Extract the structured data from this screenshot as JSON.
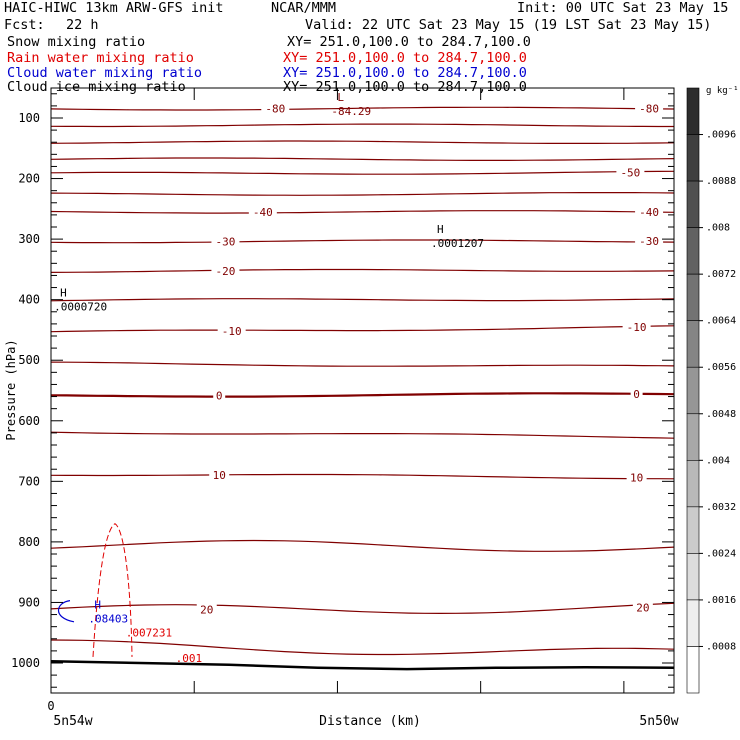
{
  "header": {
    "model_title": "HAIC-HIWC 13km ARW-GFS init",
    "org": "NCAR/MMM",
    "init": "Init: 00 UTC Sat 23 May 15",
    "fcst_label": "Fcst:",
    "fcst_value": "22 h",
    "valid": "Valid: 22 UTC Sat 23 May 15 (19 LST Sat 23 May 15)"
  },
  "fields": [
    {
      "name": "Snow mixing ratio",
      "xy": "XY= 251.0,100.0 to 284.7,100.0",
      "color": "#000000"
    },
    {
      "name": "Rain water mixing ratio",
      "xy": "XY= 251.0,100.0 to 284.7,100.0",
      "color": "#e00000"
    },
    {
      "name": "Cloud water mixing ratio",
      "xy": "XY= 251.0,100.0 to 284.7,100.0",
      "color": "#0000d0"
    },
    {
      "name": "Cloud ice mixing ratio",
      "xy": "XY= 251.0,100.0 to 284.7,100.0",
      "color": "#000000"
    }
  ],
  "chart_data": {
    "type": "contour-cross-section",
    "ylabel": "Pressure (hPa)",
    "xlabel": "Distance (km)",
    "x_start_label": "5n54w",
    "x_end_label": "5n50w",
    "x_origin_label": "0",
    "ylim": [
      1050,
      50
    ],
    "y_ticks": [
      100,
      200,
      300,
      400,
      500,
      600,
      700,
      800,
      900,
      1000
    ],
    "temperature_contour_color": "#800000",
    "temperature_contours": [
      {
        "label": "-80",
        "p_left": 85,
        "p_right": 84,
        "label_spots": [
          [
            0.36,
            -1
          ],
          [
            0.96,
            -1
          ]
        ]
      },
      {
        "label": "",
        "p_left": 112,
        "p_right": 112,
        "label_spots": []
      },
      {
        "label": "",
        "p_left": 140,
        "p_right": 140,
        "label_spots": []
      },
      {
        "label": "",
        "p_left": 168,
        "p_right": 168,
        "label_spots": []
      },
      {
        "label": "-50",
        "p_left": 192,
        "p_right": 190,
        "label_spots": [
          [
            0.93,
            -1
          ]
        ]
      },
      {
        "label": "",
        "p_left": 226,
        "p_right": 225,
        "label_spots": []
      },
      {
        "label": "-40",
        "p_left": 255,
        "p_right": 255,
        "label_spots": [
          [
            0.34,
            -1
          ],
          [
            0.96,
            -1
          ]
        ]
      },
      {
        "label": "-30",
        "p_left": 304,
        "p_right": 303,
        "label_spots": [
          [
            0.28,
            -1
          ],
          [
            0.96,
            -1
          ]
        ]
      },
      {
        "label": "-20",
        "p_left": 353,
        "p_right": 351,
        "label_spots": [
          [
            0.28,
            -1
          ]
        ]
      },
      {
        "label": "",
        "p_left": 401,
        "p_right": 399,
        "label_spots": []
      },
      {
        "label": "-10",
        "p_left": 454,
        "p_right": 445,
        "label_spots": [
          [
            0.29,
            -1
          ],
          [
            0.94,
            -1
          ]
        ]
      },
      {
        "label": "",
        "p_left": 505,
        "p_right": 511,
        "label_spots": []
      },
      {
        "label": "0",
        "p_left": 559,
        "p_right": 556,
        "label_spots": [
          [
            0.27,
            -1
          ],
          [
            0.94,
            -1
          ]
        ]
      },
      {
        "label": "",
        "p_left": 618,
        "p_right": 627,
        "label_spots": []
      },
      {
        "label": "10",
        "p_left": 688,
        "p_right": 694,
        "label_spots": [
          [
            0.27,
            -1
          ],
          [
            0.94,
            -1
          ]
        ]
      },
      {
        "label": "",
        "p_left": 805,
        "p_right": 808,
        "label_spots": []
      },
      {
        "label": "20",
        "p_left": 913,
        "p_right": 908,
        "label_spots": [
          [
            0.25,
            -1
          ],
          [
            0.95,
            -1
          ]
        ]
      },
      {
        "label": "",
        "p_left": 970,
        "p_right": 985,
        "label_spots": []
      }
    ],
    "terrain_surface_p": [
      997,
      1000,
      1003,
      1008,
      1010,
      1008,
      1007,
      1008
    ],
    "extrema": [
      {
        "symbol": "L",
        "value": "-84.29",
        "x_frac": 0.45,
        "p": 82,
        "color": "#800000"
      },
      {
        "symbol": "H",
        "value": ".0001207",
        "x_frac": 0.61,
        "p": 300,
        "color": "#000000"
      },
      {
        "symbol": "H",
        "value": ".0000720",
        "x_frac": 0.005,
        "p": 405,
        "color": "#000000"
      },
      {
        "symbol": "H",
        "value": ".08403",
        "x_frac": 0.06,
        "p": 920,
        "color": "#0000d0"
      },
      {
        "symbol": "",
        "value": ".007231",
        "x_frac": 0.12,
        "p": 943,
        "color": "#e00000"
      },
      {
        "symbol": "",
        "value": ".001",
        "x_frac": 0.2,
        "p": 985,
        "color": "#e00000"
      }
    ],
    "colorbar": {
      "unit": "g kg⁻¹",
      "labels": [
        ".0096",
        ".0088",
        ".008",
        ".0072",
        ".0064",
        ".0056",
        ".0048",
        ".004",
        ".0032",
        ".0024",
        ".0016",
        ".0008"
      ],
      "levels": 13
    }
  }
}
